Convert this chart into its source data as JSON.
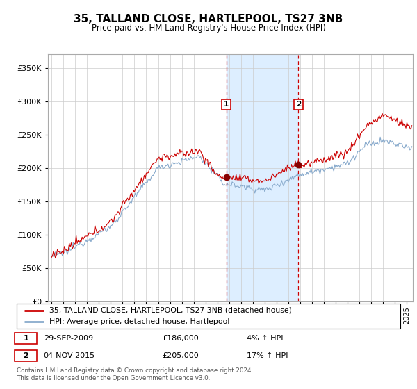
{
  "title": "35, TALLAND CLOSE, HARTLEPOOL, TS27 3NB",
  "subtitle": "Price paid vs. HM Land Registry's House Price Index (HPI)",
  "ylim": [
    0,
    370000
  ],
  "yticks": [
    0,
    50000,
    100000,
    150000,
    200000,
    250000,
    300000,
    350000
  ],
  "xlim_start": 1994.7,
  "xlim_end": 2025.5,
  "sale1_date": 2009.75,
  "sale1_price": 186000,
  "sale2_date": 2015.84,
  "sale2_price": 205000,
  "line1_color": "#cc0000",
  "line2_color": "#88aacc",
  "shade_color": "#ddeeff",
  "marker_box_color": "#cc0000",
  "legend1": "35, TALLAND CLOSE, HARTLEPOOL, TS27 3NB (detached house)",
  "legend2": "HPI: Average price, detached house, Hartlepool",
  "footnote": "Contains HM Land Registry data © Crown copyright and database right 2024.\nThis data is licensed under the Open Government Licence v3.0.",
  "grid_color": "#cccccc",
  "fig_width": 6.0,
  "fig_height": 5.6,
  "dpi": 100
}
